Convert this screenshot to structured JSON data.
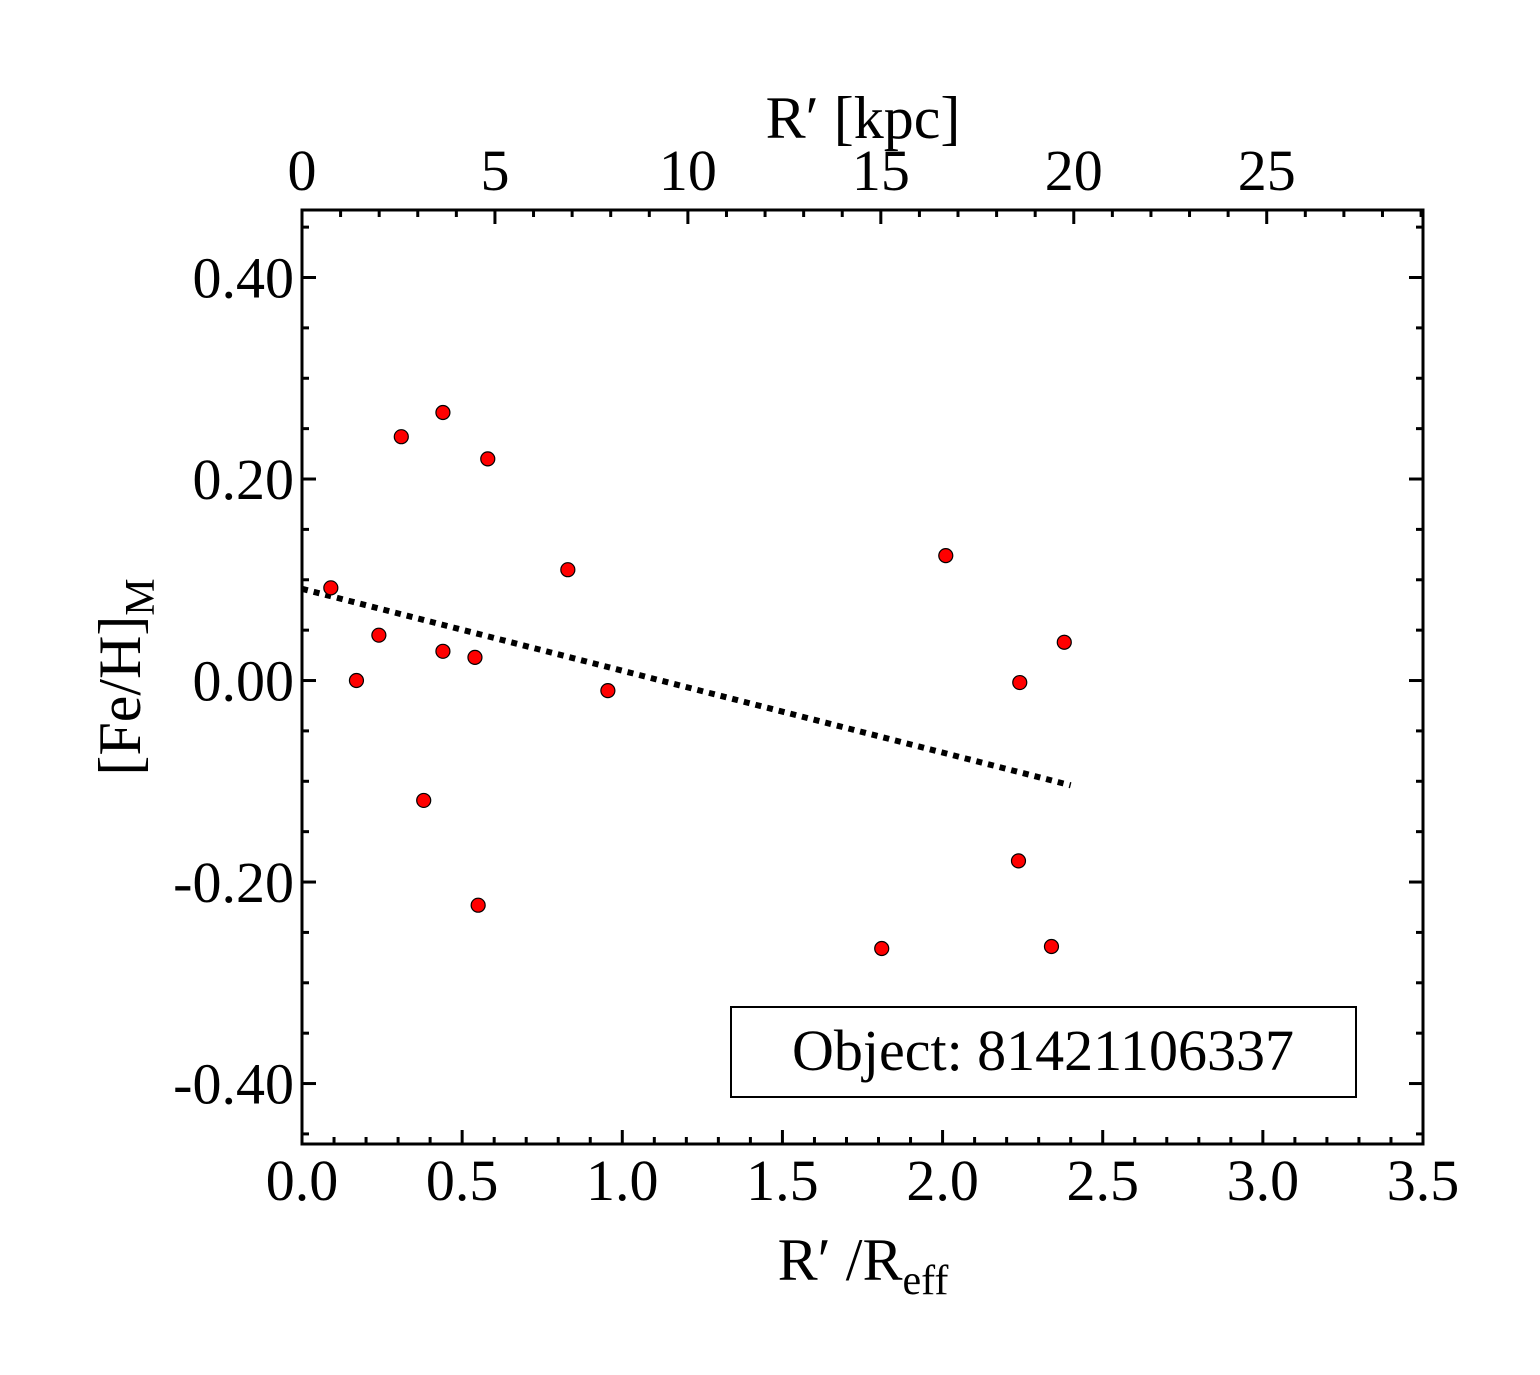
{
  "chart_data": {
    "type": "scatter",
    "xlabel_bottom": {
      "main": "R′ /R",
      "sub": "eff"
    },
    "xlabel_top": "R′ [kpc]",
    "ylabel": {
      "main": "[Fe/H]",
      "sub": "M"
    },
    "xlim": [
      0,
      3.5
    ],
    "ylim": [
      -0.46,
      0.467
    ],
    "x_ticks": [
      0,
      0.5,
      1.0,
      1.5,
      2.0,
      2.5,
      3.0,
      3.5
    ],
    "x_tick_labels": [
      "0.0",
      "0.5",
      "1.0",
      "1.5",
      "2.0",
      "2.5",
      "3.0",
      "3.5"
    ],
    "top_ticks": [
      0,
      5,
      10,
      15,
      20,
      25
    ],
    "top_tick_labels": [
      "0",
      "5",
      "10",
      "15",
      "20",
      "25"
    ],
    "top_axis_kpc_per_unit_x": 8.3,
    "y_ticks": [
      -0.4,
      -0.2,
      0.0,
      0.2,
      0.4
    ],
    "y_tick_labels": [
      "-0.40",
      "-0.20",
      "0.00",
      "0.20",
      "0.40"
    ],
    "points": [
      {
        "x": 0.09,
        "y": 0.092
      },
      {
        "x": 0.17,
        "y": 0.0
      },
      {
        "x": 0.24,
        "y": 0.045
      },
      {
        "x": 0.31,
        "y": 0.242
      },
      {
        "x": 0.38,
        "y": -0.119
      },
      {
        "x": 0.44,
        "y": 0.266
      },
      {
        "x": 0.44,
        "y": 0.029
      },
      {
        "x": 0.54,
        "y": 0.023
      },
      {
        "x": 0.55,
        "y": -0.223
      },
      {
        "x": 0.58,
        "y": 0.22
      },
      {
        "x": 0.83,
        "y": 0.11
      },
      {
        "x": 0.955,
        "y": -0.01
      },
      {
        "x": 1.81,
        "y": -0.266
      },
      {
        "x": 2.01,
        "y": 0.124
      },
      {
        "x": 2.237,
        "y": -0.179
      },
      {
        "x": 2.241,
        "y": -0.002
      },
      {
        "x": 2.34,
        "y": -0.264
      },
      {
        "x": 2.38,
        "y": 0.038
      }
    ],
    "fit_line": {
      "x": [
        0.0,
        2.4
      ],
      "y": [
        0.091,
        -0.104
      ],
      "style": "dotted"
    },
    "legend_text": "Object: 81421106337",
    "marker_color": "#ff0000",
    "marker_edge_color": "#000000",
    "grid": false
  }
}
